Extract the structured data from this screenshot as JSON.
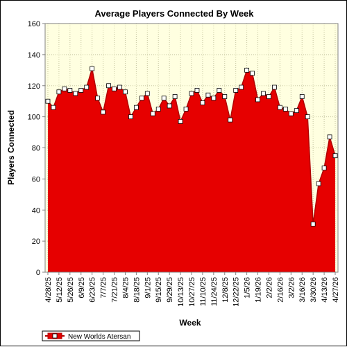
{
  "chart_data": {
    "type": "area",
    "title": "Average Players Connected By Week",
    "xlabel": "Week",
    "ylabel": "Players Connected",
    "ylim": [
      0,
      160
    ],
    "yticks": [
      0,
      20,
      40,
      60,
      80,
      100,
      120,
      140,
      160
    ],
    "grid": true,
    "legend_position": "bottom-left",
    "colors": {
      "plot_background": "#ffffe0",
      "area_fill": "#e60000",
      "line": "#b00000",
      "marker_fill": "#ffffff",
      "grid": "#c8c8a0"
    },
    "x_tick_labels": [
      "4/28/25",
      "5/12/25",
      "5/26/25",
      "6/9/25",
      "6/23/25",
      "7/7/25",
      "7/21/25",
      "8/4/25",
      "8/18/25",
      "9/1/25",
      "9/15/25",
      "9/29/25",
      "10/13/25",
      "10/27/25",
      "11/10/25",
      "11/24/25",
      "12/8/25",
      "12/22/25",
      "1/5/26",
      "1/19/26",
      "2/2/26",
      "2/16/26",
      "3/2/26",
      "3/16/26",
      "3/30/26",
      "4/13/26",
      "4/27/26"
    ],
    "series": [
      {
        "name": "New Worlds Atersan",
        "x": [
          "4/28/25",
          "5/5/25",
          "5/12/25",
          "5/19/25",
          "5/26/25",
          "6/2/25",
          "6/9/25",
          "6/16/25",
          "6/23/25",
          "6/30/25",
          "7/7/25",
          "7/14/25",
          "7/21/25",
          "7/28/25",
          "8/4/25",
          "8/11/25",
          "8/18/25",
          "8/25/25",
          "9/1/25",
          "9/8/25",
          "9/15/25",
          "9/22/25",
          "9/29/25",
          "10/6/25",
          "10/13/25",
          "10/20/25",
          "10/27/25",
          "11/3/25",
          "11/10/25",
          "11/17/25",
          "11/24/25",
          "12/1/25",
          "12/8/25",
          "12/15/25",
          "12/22/25",
          "12/29/25",
          "1/5/26",
          "1/12/26",
          "1/19/26",
          "1/26/26",
          "2/2/26",
          "2/9/26",
          "2/16/26",
          "2/23/26",
          "3/2/26",
          "3/9/26",
          "3/16/26",
          "3/23/26",
          "3/30/26",
          "4/6/26",
          "4/13/26",
          "4/20/26",
          "4/27/26"
        ],
        "values": [
          110,
          106,
          116,
          118,
          117,
          115,
          117,
          119,
          131,
          112,
          103,
          120,
          118,
          119,
          116,
          100,
          106,
          112,
          115,
          102,
          105,
          112,
          107,
          113,
          97,
          105,
          115,
          117,
          109,
          114,
          112,
          117,
          113,
          98,
          117,
          119,
          130,
          128,
          111,
          115,
          113,
          119,
          106,
          105,
          102,
          104,
          113,
          100,
          31,
          57,
          67,
          87,
          75
        ]
      }
    ]
  }
}
